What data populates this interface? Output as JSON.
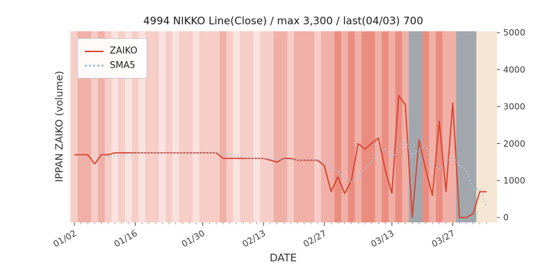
{
  "chart_data": {
    "type": "line",
    "title": "4994 NIKKO Line(Close) / max 3,300 / last(04/03) 700",
    "xlabel": "DATE",
    "ylabel": "IPPAN ZAIKO (volume)",
    "ylim": [
      0,
      5000
    ],
    "yticks": [
      0,
      1000,
      2000,
      3000,
      4000,
      5000
    ],
    "xtick_labels": [
      "01/02",
      "01/16",
      "01/30",
      "02/13",
      "02/27",
      "03/13",
      "03/27"
    ],
    "legend_position": "upper left",
    "grid": false,
    "x": [
      "01/02",
      "01/03",
      "01/06",
      "01/07",
      "01/08",
      "01/09",
      "01/10",
      "01/14",
      "01/15",
      "01/16",
      "01/17",
      "01/20",
      "01/21",
      "01/22",
      "01/23",
      "01/24",
      "01/27",
      "01/28",
      "01/29",
      "01/30",
      "01/31",
      "02/03",
      "02/04",
      "02/05",
      "02/06",
      "02/07",
      "02/10",
      "02/12",
      "02/13",
      "02/14",
      "02/17",
      "02/18",
      "02/19",
      "02/20",
      "02/21",
      "02/25",
      "02/26",
      "02/27",
      "02/28",
      "03/03",
      "03/04",
      "03/05",
      "03/06",
      "03/07",
      "03/10",
      "03/11",
      "03/12",
      "03/13",
      "03/14",
      "03/17",
      "03/18",
      "03/19",
      "03/21",
      "03/24",
      "03/25",
      "03/26",
      "03/27",
      "03/28",
      "03/31",
      "04/01",
      "04/02",
      "04/03"
    ],
    "series": [
      {
        "name": "ZAIKO",
        "style": "solid",
        "color": "#d7432e",
        "values": [
          1700,
          1700,
          1700,
          1450,
          1700,
          1700,
          1750,
          1750,
          1750,
          1750,
          1750,
          1750,
          1750,
          1750,
          1750,
          1750,
          1750,
          1750,
          1750,
          1750,
          1750,
          1750,
          1600,
          1600,
          1600,
          1600,
          1600,
          1600,
          1600,
          1550,
          1500,
          1600,
          1600,
          1550,
          1550,
          1550,
          1550,
          1400,
          700,
          1100,
          650,
          1000,
          2000,
          1850,
          2000,
          2150,
          1300,
          650,
          3300,
          3050,
          0,
          2100,
          1300,
          600,
          2600,
          700,
          3100,
          0,
          0,
          100,
          700,
          700
        ]
      },
      {
        "name": "SMA5",
        "style": "dotted",
        "color": "#a9c6de",
        "values": [
          null,
          null,
          null,
          null,
          1650,
          1650,
          1660,
          1670,
          1730,
          1740,
          1750,
          1750,
          1750,
          1750,
          1750,
          1750,
          1750,
          1750,
          1750,
          1750,
          1750,
          1750,
          1720,
          1690,
          1660,
          1630,
          1600,
          1600,
          1600,
          1590,
          1570,
          1570,
          1570,
          1560,
          1560,
          1570,
          1560,
          1520,
          1350,
          1260,
          1080,
          970,
          1090,
          1320,
          1500,
          1800,
          1860,
          1590,
          1880,
          2090,
          1660,
          1820,
          1950,
          1410,
          1320,
          1460,
          1660,
          1400,
          1280,
          780,
          780,
          300
        ]
      }
    ],
    "annotations": {
      "max_value": 3300,
      "last_date": "04/03",
      "last_value": 700
    },
    "background_bands": {
      "palette": {
        "r1": "#fae3df",
        "r2": "#f6cdc7",
        "r3": "#f0b0a7",
        "r4": "#ea8d80",
        "g": "#a2a7ae",
        "b": "#f5e7d4"
      },
      "keys": [
        "r2",
        "r3",
        "r3",
        "r2",
        "r3",
        "r2",
        "r1",
        "r2",
        "r1",
        "r2",
        "r1",
        "r2",
        "r2",
        "r1",
        "r2",
        "r1",
        "r2",
        "r2",
        "r1",
        "r2",
        "r2",
        "r2",
        "r3",
        "r2",
        "r1",
        "r2",
        "r2",
        "r1",
        "r2",
        "r2",
        "r3",
        "r3",
        "r2",
        "r3",
        "r3",
        "r3",
        "r2",
        "r3",
        "r3",
        "r4",
        "r3",
        "r4",
        "r3",
        "r4",
        "r4",
        "r3",
        "r4",
        "r3",
        "r4",
        "r3",
        "g",
        "g",
        "r4",
        "r3",
        "r4",
        "r3",
        "r3",
        "g",
        "g",
        "g",
        "b",
        "b"
      ]
    },
    "colors": {
      "plot_bg": "#f0edea",
      "figure_bg": "#ffffff",
      "tick_label": "#3d3d3d",
      "title_color": "#1a1a1a"
    }
  }
}
